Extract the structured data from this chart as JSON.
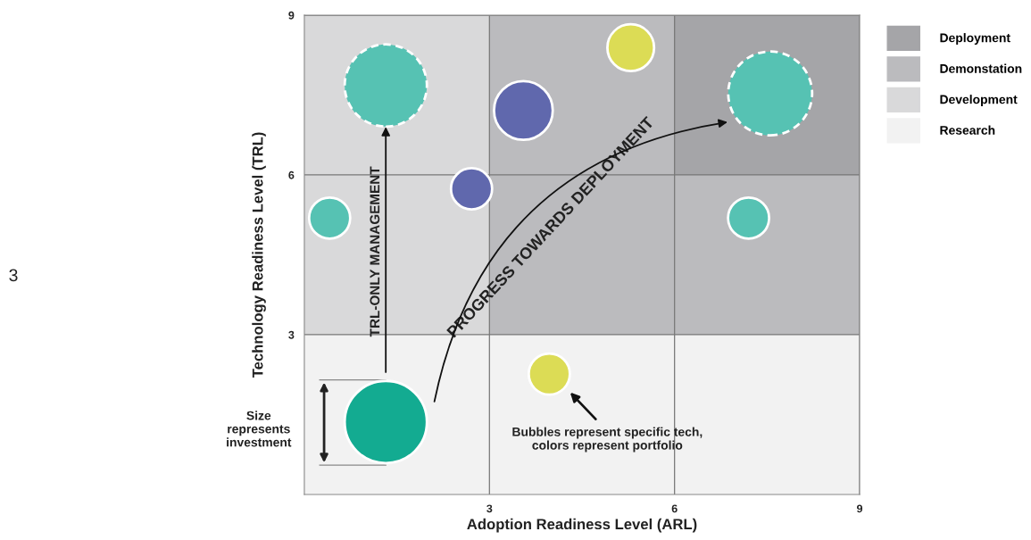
{
  "chart_data": {
    "type": "bubble",
    "xlabel": "Adoption Readiness Level (ARL)",
    "ylabel": "Technology Readiness Level (TRL)",
    "xlim": [
      0,
      9
    ],
    "ylim": [
      0,
      9
    ],
    "xticks": [
      3,
      6,
      9
    ],
    "yticks": [
      3,
      6,
      9
    ],
    "grid": true,
    "legend": "right",
    "series": [
      {
        "type": "bar",
        "name": "Research",
        "color": "#f2f2f2",
        "x": [
          1.5,
          4.5,
          7.5
        ],
        "values": [
          3,
          3,
          3
        ]
      },
      {
        "type": "bar",
        "name": "Development",
        "color": "#d9d9da",
        "x": [
          1.5
        ],
        "base": [
          3
        ],
        "values": [
          6
        ]
      },
      {
        "type": "bar",
        "name": "Demonstation",
        "color": "#bbbbbe",
        "x": [
          4.5,
          7.5
        ],
        "base": [
          3,
          3
        ],
        "values": [
          6,
          3
        ]
      },
      {
        "type": "bar",
        "name": "Deployment",
        "color": "#a5a5a8",
        "x": [
          7.5
        ],
        "base": [
          6
        ],
        "values": [
          3
        ]
      },
      {
        "line_style": "solid",
        "x": [
          5.29,
          3.55,
          2.71,
          0.41,
          7.2,
          3.97,
          1.32
        ],
        "values": [
          8.39,
          7.21,
          5.74,
          5.19,
          5.19,
          2.26,
          1.36
        ],
        "sizes": [
          0.31,
          0.49,
          0.24,
          0.24,
          0.24,
          0.24,
          0.96
        ],
        "colors": [
          "#dcdc55",
          "#6068ad",
          "#6068ad",
          "#56c2b3",
          "#56c2b3",
          "#dcdc55",
          "#13ab91"
        ]
      },
      {
        "line_style": "dashed",
        "x": [
          1.32,
          7.55
        ],
        "values": [
          7.68,
          7.53
        ],
        "sizes": [
          0.96,
          1.0
        ],
        "colors": [
          "#56c2b3",
          "#56c2b3"
        ]
      }
    ],
    "annotations": [
      "TRL-ONLY MANAGEMENT",
      "PROGRESS TOWARDS DEPLOYMENT",
      "Size\nrepresents\ninvestment",
      "Bubbles represent specific tech,\ncolors represent portfolio",
      "3"
    ]
  }
}
